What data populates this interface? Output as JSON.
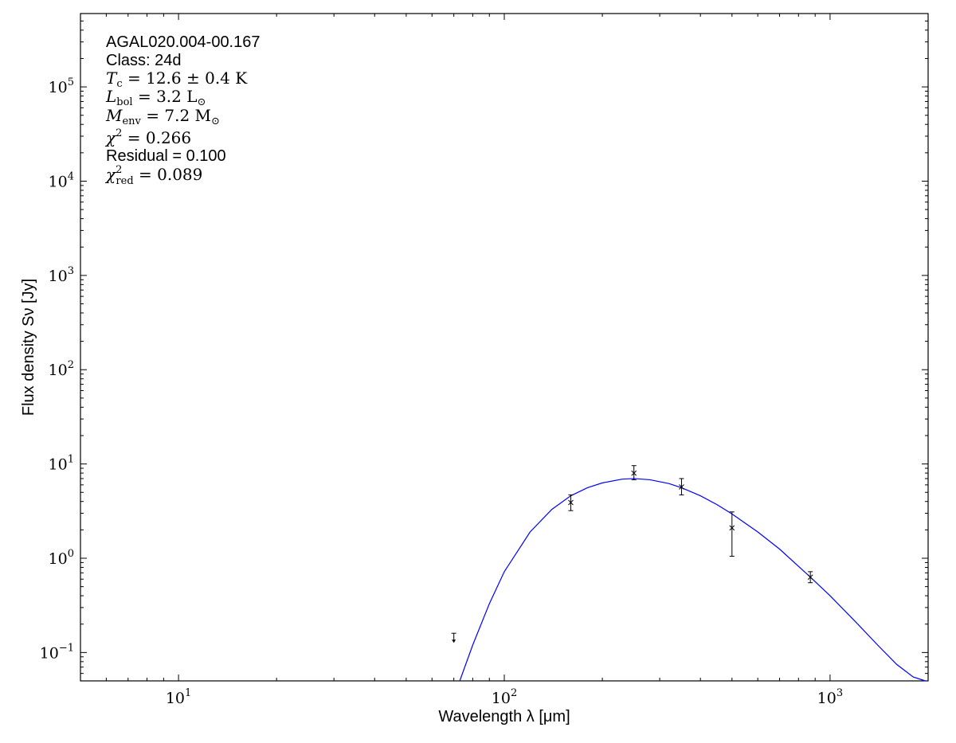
{
  "chart_data": {
    "type": "scatter",
    "title": "",
    "xlabel": "Wavelength λ [μm]",
    "ylabel": "Flux density Sν [Jy]",
    "xscale": "log",
    "yscale": "log",
    "xlim": [
      5,
      2000
    ],
    "ylim": [
      0.05,
      600000
    ],
    "grid": false,
    "x_tick_labels": [
      {
        "value": 10,
        "base": "10",
        "exp": "1"
      },
      {
        "value": 100,
        "base": "10",
        "exp": "2"
      },
      {
        "value": 1000,
        "base": "10",
        "exp": "3"
      }
    ],
    "y_tick_labels": [
      {
        "value": 0.1,
        "base": "10",
        "exp": "−1"
      },
      {
        "value": 1,
        "base": "10",
        "exp": "0"
      },
      {
        "value": 10,
        "base": "10",
        "exp": "1"
      },
      {
        "value": 100,
        "base": "10",
        "exp": "2"
      },
      {
        "value": 1000,
        "base": "10",
        "exp": "3"
      },
      {
        "value": 10000,
        "base": "10",
        "exp": "4"
      },
      {
        "value": 100000,
        "base": "10",
        "exp": "5"
      }
    ],
    "measurements": [
      {
        "x": 160,
        "y": 3.9,
        "yerr_low": 3.2,
        "yerr_high": 4.7
      },
      {
        "x": 250,
        "y": 8.0,
        "yerr_low": 6.8,
        "yerr_high": 9.6
      },
      {
        "x": 350,
        "y": 5.7,
        "yerr_low": 4.7,
        "yerr_high": 7.0
      },
      {
        "x": 500,
        "y": 2.1,
        "yerr_low": 1.05,
        "yerr_high": 3.1
      },
      {
        "x": 870,
        "y": 0.63,
        "yerr_low": 0.55,
        "yerr_high": 0.72
      }
    ],
    "upper_limits": [
      {
        "x": 70,
        "y": 0.16
      }
    ],
    "model_fit": {
      "type": "modified blackbody",
      "color": "#0000ff",
      "points": [
        {
          "x": 73,
          "y": 0.05
        },
        {
          "x": 80,
          "y": 0.12
        },
        {
          "x": 90,
          "y": 0.33
        },
        {
          "x": 100,
          "y": 0.72
        },
        {
          "x": 120,
          "y": 1.9
        },
        {
          "x": 140,
          "y": 3.3
        },
        {
          "x": 160,
          "y": 4.6
        },
        {
          "x": 180,
          "y": 5.6
        },
        {
          "x": 200,
          "y": 6.3
        },
        {
          "x": 230,
          "y": 6.9
        },
        {
          "x": 250,
          "y": 7.0
        },
        {
          "x": 280,
          "y": 6.8
        },
        {
          "x": 320,
          "y": 6.2
        },
        {
          "x": 350,
          "y": 5.6
        },
        {
          "x": 400,
          "y": 4.6
        },
        {
          "x": 450,
          "y": 3.7
        },
        {
          "x": 500,
          "y": 2.95
        },
        {
          "x": 600,
          "y": 1.9
        },
        {
          "x": 700,
          "y": 1.25
        },
        {
          "x": 870,
          "y": 0.63
        },
        {
          "x": 1000,
          "y": 0.4
        },
        {
          "x": 1200,
          "y": 0.21
        },
        {
          "x": 1400,
          "y": 0.12
        },
        {
          "x": 1600,
          "y": 0.075
        },
        {
          "x": 1800,
          "y": 0.055
        },
        {
          "x": 1960,
          "y": 0.05
        }
      ]
    },
    "marker_color": "#000000",
    "annotations": {
      "source_name": "AGAL020.004-00.167",
      "class_label": "Class: 24d",
      "tc": {
        "sym": "T",
        "sub": "c",
        "value": " = 12.6 ± 0.4 K"
      },
      "lbol": {
        "sym": "L",
        "sub": "bol",
        "value": " = 3.2 L",
        "unit_sub": "⊙"
      },
      "menv": {
        "sym": "M",
        "sub": "env",
        "value": " = 7.2 M",
        "unit_sub": "⊙"
      },
      "chi2": {
        "sym": "χ",
        "sup": "2",
        "value": " = 0.266"
      },
      "residual": "Residual = 0.100",
      "chi2red": {
        "sym": "χ",
        "sup": "2",
        "sub": "red",
        "value": " = 0.089"
      }
    }
  }
}
